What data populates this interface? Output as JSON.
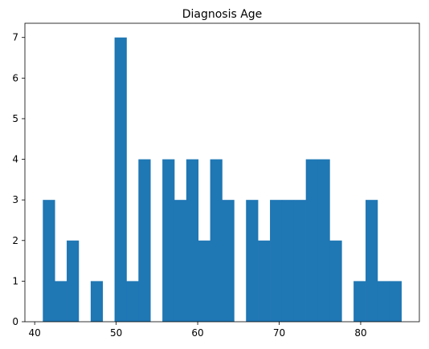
{
  "chart_data": {
    "type": "bar",
    "title": "Diagnosis Age",
    "xlabel": "",
    "ylabel": "",
    "bin_width": 1.47,
    "bins": [
      {
        "start": 41.0,
        "count": 3
      },
      {
        "start": 42.47,
        "count": 1
      },
      {
        "start": 43.93,
        "count": 2
      },
      {
        "start": 45.4,
        "count": 0
      },
      {
        "start": 46.87,
        "count": 1
      },
      {
        "start": 48.33,
        "count": 0
      },
      {
        "start": 49.8,
        "count": 7
      },
      {
        "start": 51.27,
        "count": 1
      },
      {
        "start": 52.73,
        "count": 4
      },
      {
        "start": 54.2,
        "count": 0
      },
      {
        "start": 55.67,
        "count": 4
      },
      {
        "start": 57.13,
        "count": 3
      },
      {
        "start": 58.6,
        "count": 4
      },
      {
        "start": 60.07,
        "count": 2
      },
      {
        "start": 61.53,
        "count": 4
      },
      {
        "start": 63.0,
        "count": 3
      },
      {
        "start": 64.47,
        "count": 0
      },
      {
        "start": 65.93,
        "count": 3
      },
      {
        "start": 67.4,
        "count": 2
      },
      {
        "start": 68.87,
        "count": 3
      },
      {
        "start": 70.33,
        "count": 3
      },
      {
        "start": 71.8,
        "count": 3
      },
      {
        "start": 73.27,
        "count": 4
      },
      {
        "start": 74.73,
        "count": 4
      },
      {
        "start": 76.2,
        "count": 2
      },
      {
        "start": 77.67,
        "count": 0
      },
      {
        "start": 79.13,
        "count": 1
      },
      {
        "start": 80.6,
        "count": 3
      },
      {
        "start": 82.07,
        "count": 1
      },
      {
        "start": 83.53,
        "count": 1
      }
    ],
    "xlim": [
      38.8,
      87.2
    ],
    "ylim": [
      0,
      7.35
    ],
    "x_ticks": [
      40,
      50,
      60,
      70,
      80
    ],
    "y_ticks": [
      0,
      1,
      2,
      3,
      4,
      5,
      6,
      7
    ],
    "bar_color": "#1f77b4",
    "grid": false,
    "legend": "none"
  }
}
